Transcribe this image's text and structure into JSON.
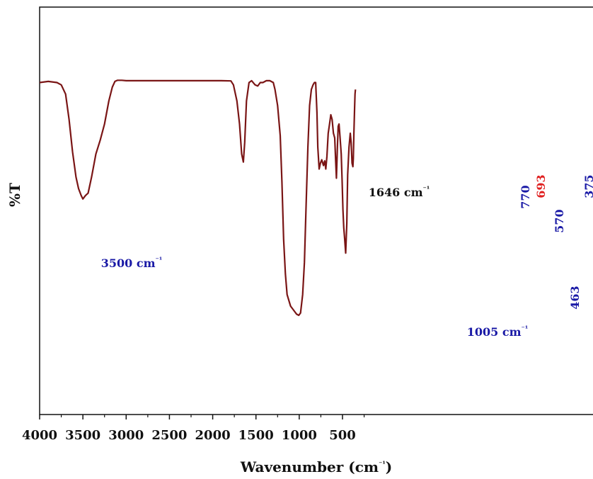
{
  "chart_data": {
    "type": "line",
    "title": "",
    "xlabel": "Wavenumber (cm⁻¹)",
    "ylabel": "%T",
    "x_reversed": true,
    "xlim": [
      4000,
      350
    ],
    "xticks": [
      4000,
      3500,
      3000,
      2500,
      2000,
      1500,
      1000,
      500
    ],
    "ylim": [
      0,
      100
    ],
    "grid": false,
    "line_color": "#7a1515",
    "series": [
      {
        "x": [
          4000,
          3900,
          3800,
          3750,
          3700,
          3660,
          3620,
          3580,
          3550,
          3520,
          3500,
          3470,
          3440,
          3400,
          3350,
          3300,
          3250,
          3200,
          3160,
          3130,
          3100,
          3050,
          3000,
          2800,
          2500,
          2200,
          1900,
          1790,
          1760,
          1720,
          1690,
          1665,
          1646,
          1630,
          1610,
          1580,
          1550,
          1510,
          1480,
          1450,
          1420,
          1380,
          1340,
          1300,
          1280,
          1250,
          1220,
          1200,
          1180,
          1160,
          1140,
          1100,
          1060,
          1030,
          1005,
          985,
          960,
          940,
          920,
          900,
          880,
          860,
          840,
          825,
          810,
          795,
          785,
          770,
          755,
          740,
          720,
          705,
          693,
          680,
          665,
          650,
          635,
          620,
          605,
          590,
          580,
          570,
          560,
          550,
          540,
          528,
          515,
          505,
          495,
          485,
          475,
          463,
          450,
          440,
          425,
          410,
          400,
          390,
          380,
          375,
          368,
          360,
          355,
          350
        ],
        "y": [
          98,
          98.5,
          98,
          97,
          93,
          82,
          68,
          57,
          52,
          49,
          47.5,
          49,
          50,
          57,
          67,
          73,
          80,
          90,
          96,
          98.5,
          99,
          99,
          98.8,
          98.8,
          98.8,
          98.8,
          98.8,
          98.7,
          97,
          90,
          80,
          67,
          63.5,
          72,
          90,
          98,
          98.8,
          97,
          96.5,
          98,
          98,
          98.8,
          98.8,
          98,
          95,
          88,
          75,
          55,
          30,
          15,
          6,
          1,
          -1,
          -2.5,
          -3,
          -2,
          6,
          20,
          45,
          70,
          88,
          95,
          97,
          98,
          98,
          85,
          70,
          60.5,
          63,
          64.5,
          62,
          64,
          60.5,
          66,
          76,
          80,
          84,
          82,
          76,
          74,
          65,
          56.5,
          69,
          79,
          80,
          74,
          67,
          56,
          43,
          35,
          30,
          24,
          37,
          58,
          70,
          76,
          72,
          63,
          61.5,
          65,
          76,
          87,
          93,
          95
        ]
      }
    ],
    "annotations": [
      {
        "label": "3500",
        "unit": "cm⁻¹",
        "x": 3500,
        "color": "#1a1aa6",
        "rotated": false
      },
      {
        "label": "1646",
        "unit": "cm⁻¹",
        "x": 1646,
        "color": "#111111",
        "rotated": false
      },
      {
        "label": "1005",
        "unit": "cm⁻¹",
        "x": 1005,
        "color": "#1a1aa6",
        "rotated": false
      },
      {
        "label": "770",
        "unit": "",
        "x": 770,
        "color": "#1a1aa6",
        "rotated": true
      },
      {
        "label": "693",
        "unit": "",
        "x": 693,
        "color": "#e02020",
        "rotated": true
      },
      {
        "label": "570",
        "unit": "",
        "x": 570,
        "color": "#1a1aa6",
        "rotated": true
      },
      {
        "label": "463",
        "unit": "",
        "x": 463,
        "color": "#1a1aa6",
        "rotated": true
      },
      {
        "label": "375",
        "unit": "",
        "x": 375,
        "color": "#1a1aa6",
        "rotated": true
      }
    ]
  }
}
